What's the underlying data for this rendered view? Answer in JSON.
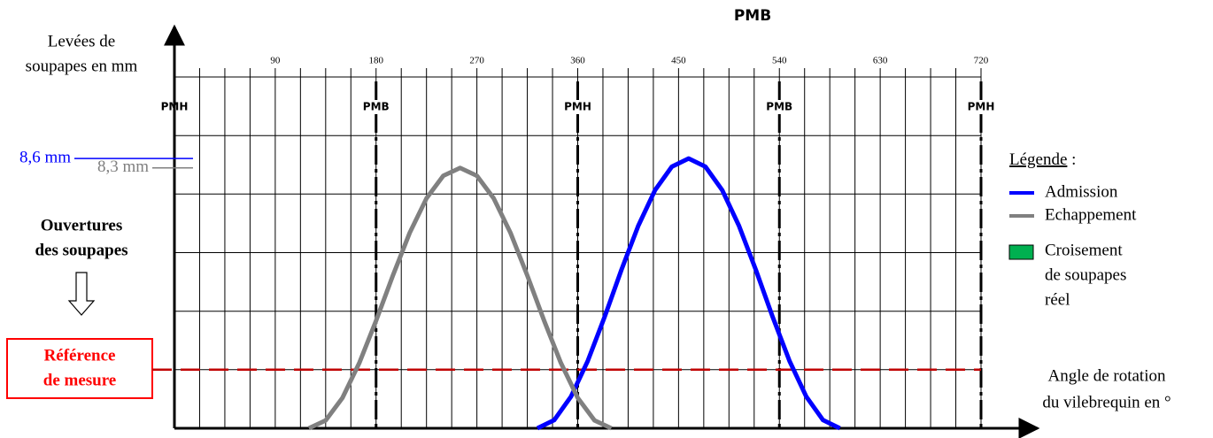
{
  "chart_data": {
    "type": "line",
    "title": "PMB",
    "y_label": [
      "Levées de",
      "soupapes en mm"
    ],
    "x_label": [
      "Angle de rotation",
      "du vilebrequin en °"
    ],
    "xlim": [
      0,
      720
    ],
    "ylim": [
      0,
      11.2
    ],
    "xticks": [
      90,
      180,
      270,
      360,
      450,
      540,
      630,
      720
    ],
    "xgrid": [
      22.5,
      45,
      67.5,
      90,
      112.5,
      135,
      157.5,
      180,
      202.5,
      225,
      247.5,
      270,
      292.5,
      315,
      337.5,
      360,
      382.5,
      405,
      427.5,
      450,
      472.5,
      495,
      517.5,
      540,
      562.5,
      585,
      607.5,
      630,
      652.5,
      675,
      697.5,
      720
    ],
    "ygrid": [
      1.87,
      3.73,
      5.6,
      7.47,
      9.33,
      11.2
    ],
    "phase_marks": [
      {
        "value": 0,
        "label": "PMH"
      },
      {
        "value": 180,
        "label": "PMB"
      },
      {
        "value": 360,
        "label": "PMH"
      },
      {
        "value": 540,
        "label": "PMB"
      },
      {
        "value": 720,
        "label": "PMH"
      }
    ],
    "reference_value": 1.87,
    "reference_label": [
      "Référence",
      "de mesure"
    ],
    "reference_color": "#c00000",
    "openings_label": [
      "Ouvertures",
      "des soupapes"
    ],
    "series": [
      {
        "name": "Admission",
        "color": "#0000ff",
        "peak_label": "8,6 mm",
        "x": [
          324,
          339,
          354,
          369,
          384,
          399,
          414,
          429,
          444,
          459,
          474,
          489,
          504,
          519,
          534,
          549,
          564,
          579,
          594
        ],
        "values": [
          0,
          0.26,
          1.01,
          2.15,
          3.55,
          5.05,
          6.45,
          7.59,
          8.34,
          8.6,
          8.34,
          7.59,
          6.45,
          5.05,
          3.55,
          2.15,
          1.01,
          0.26,
          0
        ]
      },
      {
        "name": "Echappement",
        "color": "#808080",
        "peak_label": "8,3 mm",
        "x": [
          120,
          135,
          150,
          165,
          180,
          195,
          210,
          225,
          240,
          255,
          270,
          285,
          300,
          315,
          330,
          345,
          360,
          375,
          390
        ],
        "values": [
          0,
          0.25,
          0.97,
          2.08,
          3.43,
          4.87,
          6.23,
          7.33,
          8.05,
          8.3,
          8.05,
          7.33,
          6.23,
          4.87,
          3.43,
          2.08,
          0.97,
          0.25,
          0
        ]
      }
    ],
    "legend_title": "Légende",
    "legend_colon": ":",
    "overlap_label": [
      "Croisement",
      "de soupapes",
      "réel"
    ],
    "overlap_color": "#00b050"
  }
}
